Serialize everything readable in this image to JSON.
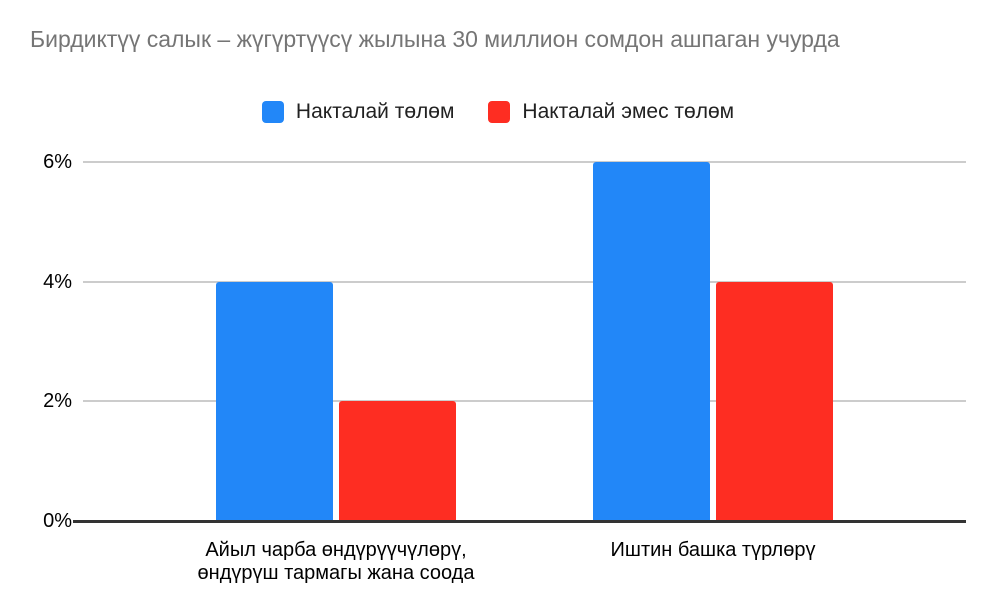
{
  "chart_data": {
    "type": "bar",
    "title": "Бирдиктүү салык – жүгүртүүсү жылына 30 миллион сомдон ашпаган учурда",
    "title_color": "#757575",
    "categories": [
      "Айыл чарба өндүрүүчүлөрү,\nөндүрүш тармагы жана соода",
      "Иштин башка түрлөрү"
    ],
    "series": [
      {
        "name": "Накталай төлөм",
        "color": "#2287f8",
        "values": [
          4,
          6
        ]
      },
      {
        "name": "Накталай эмес төлөм",
        "color": "#fe2d22",
        "values": [
          2,
          4
        ]
      }
    ],
    "yticks": [
      {
        "value": 0,
        "label": "0%"
      },
      {
        "value": 2,
        "label": "2%"
      },
      {
        "value": 4,
        "label": "4%"
      },
      {
        "value": 6,
        "label": "6%"
      }
    ],
    "ylim": [
      0,
      6
    ],
    "y_unit": "%",
    "grid": true,
    "grid_color": "#cccccc",
    "baseline_color": "#333333",
    "legend_position": "top"
  }
}
